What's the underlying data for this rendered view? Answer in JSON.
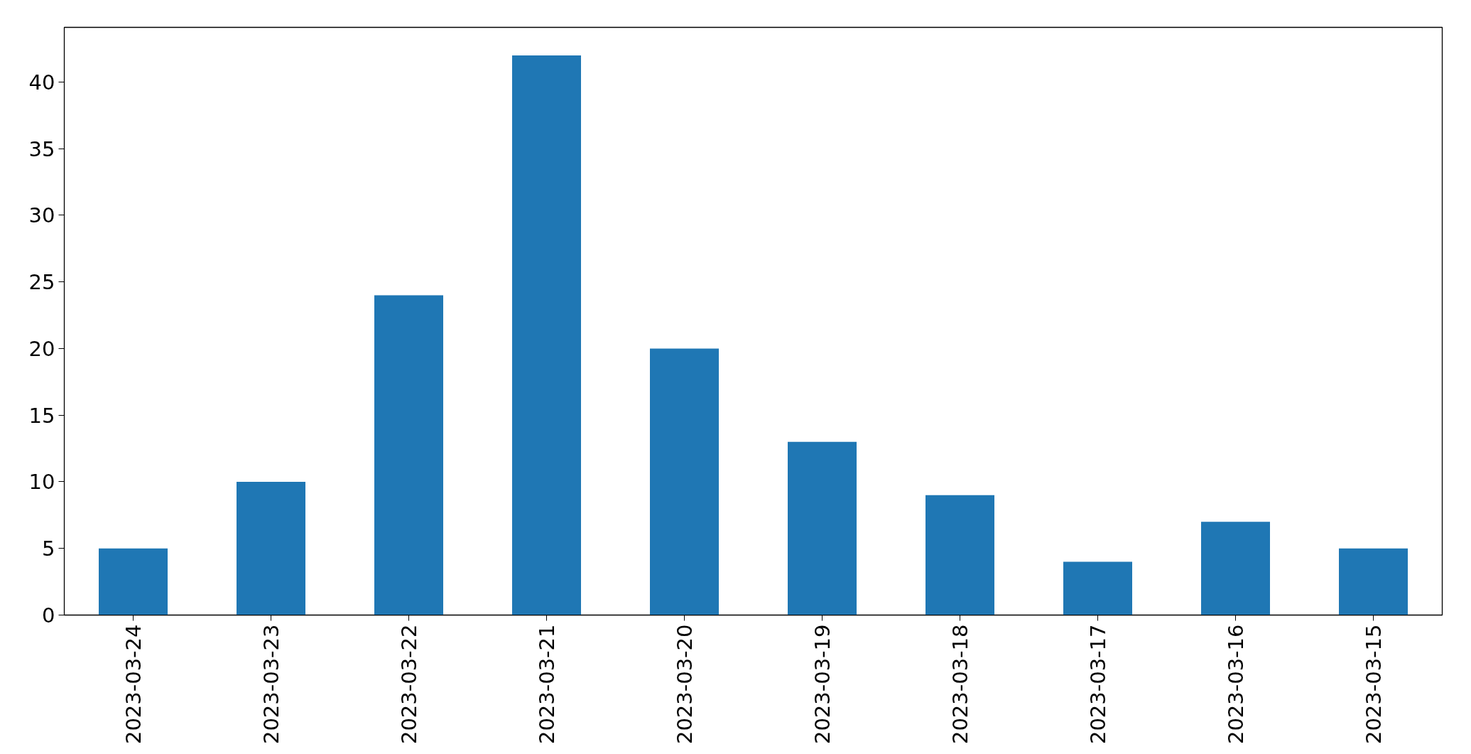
{
  "chart_data": {
    "type": "bar",
    "categories": [
      "2023-03-24",
      "2023-03-23",
      "2023-03-22",
      "2023-03-21",
      "2023-03-20",
      "2023-03-19",
      "2023-03-18",
      "2023-03-17",
      "2023-03-16",
      "2023-03-15"
    ],
    "values": [
      5,
      10,
      24,
      42,
      20,
      13,
      9,
      4,
      7,
      5
    ],
    "color": "#1f77b4",
    "ylim": [
      0,
      44.1
    ],
    "yticks": [
      0,
      5,
      10,
      15,
      20,
      25,
      30,
      35,
      40
    ]
  }
}
